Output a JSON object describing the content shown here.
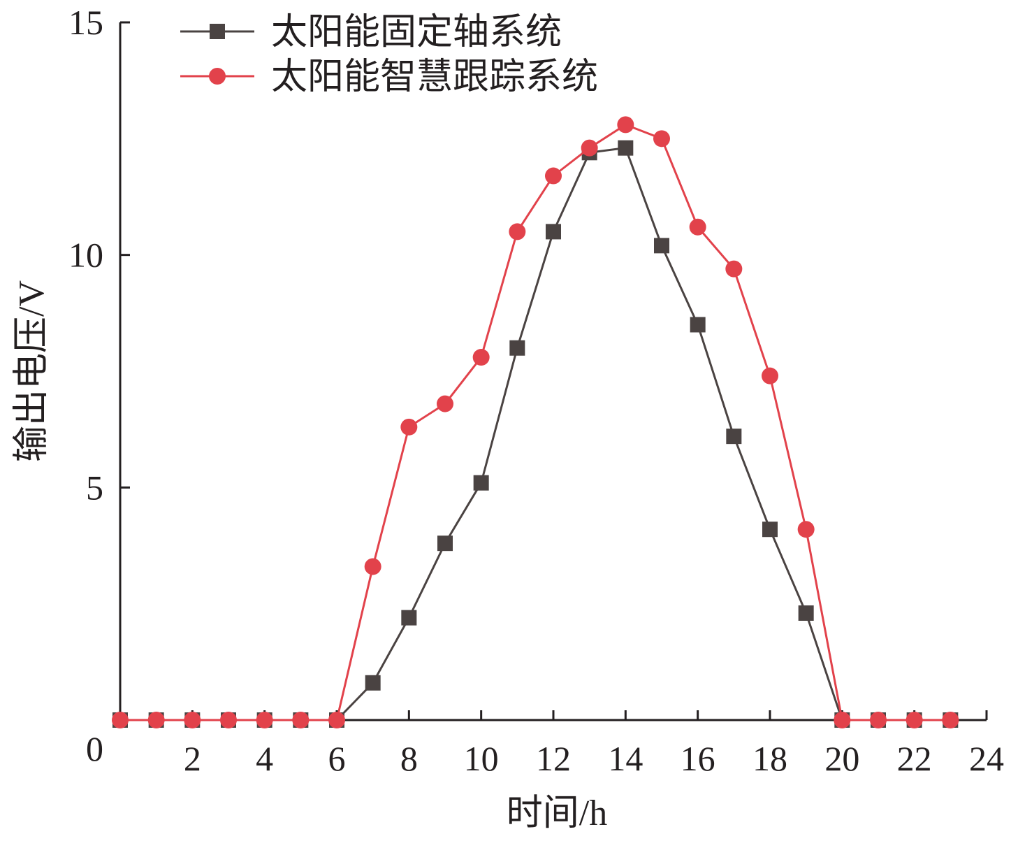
{
  "chart_data": {
    "type": "line",
    "title": "",
    "xlabel": "时间/h",
    "ylabel": "输出电压/V",
    "xlim": [
      0,
      24
    ],
    "ylim": [
      0,
      15
    ],
    "xticks": [
      "2",
      "4",
      "6",
      "8",
      "10",
      "12",
      "14",
      "16",
      "18",
      "20",
      "22",
      "24"
    ],
    "yticks": [
      "0",
      "5",
      "10",
      "15"
    ],
    "grid": false,
    "legend_position": "top-left",
    "x": [
      0,
      1,
      2,
      3,
      4,
      5,
      6,
      7,
      8,
      9,
      10,
      11,
      12,
      13,
      14,
      15,
      16,
      17,
      18,
      19,
      20,
      21,
      22,
      23
    ],
    "series": [
      {
        "name": "太阳能固定轴系统",
        "color": "#4a4342",
        "marker": "square",
        "values": [
          0,
          0,
          0,
          0,
          0,
          0,
          0,
          0.8,
          2.2,
          3.8,
          5.1,
          8.0,
          10.5,
          12.2,
          12.3,
          10.2,
          8.5,
          6.1,
          4.1,
          2.3,
          0,
          0,
          0,
          0
        ]
      },
      {
        "name": "太阳能智慧跟踪系统",
        "color": "#e2424b",
        "marker": "circle",
        "values": [
          0,
          0,
          0,
          0,
          0,
          0,
          0,
          3.3,
          6.3,
          6.8,
          7.8,
          10.5,
          11.7,
          12.3,
          12.8,
          12.5,
          10.6,
          9.7,
          7.4,
          4.1,
          0,
          0,
          0,
          0
        ]
      }
    ]
  }
}
